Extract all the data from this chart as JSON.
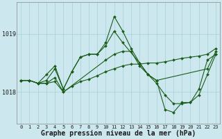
{
  "background_color": "#cce8ee",
  "grid_color": "#aad4da",
  "line_color": "#1a5c1a",
  "marker_color": "#1a5c1a",
  "xlabel": "Graphe pression niveau de la mer (hPa)",
  "xlabel_fontsize": 7,
  "ylabel_ticks": [
    1018,
    1019
  ],
  "xlim": [
    -0.5,
    23.5
  ],
  "ylim": [
    1017.45,
    1019.55
  ],
  "series": [
    {
      "x": [
        0,
        1,
        2,
        3,
        4,
        5,
        6,
        7,
        8,
        9,
        10,
        11,
        12,
        13,
        14,
        15,
        16,
        17,
        18,
        19,
        20,
        21,
        22,
        23
      ],
      "y": [
        1018.2,
        1018.2,
        1018.15,
        1018.3,
        1018.45,
        1018.05,
        1018.35,
        1018.6,
        1018.65,
        1018.65,
        1018.85,
        1019.3,
        1019.05,
        1018.75,
        1018.5,
        1018.3,
        1018.2,
        1017.7,
        1017.65,
        1017.82,
        1017.82,
        1018.05,
        1018.55,
        1018.65
      ]
    },
    {
      "x": [
        0,
        1,
        2,
        3,
        4,
        5,
        6,
        7,
        8,
        9,
        10,
        11,
        12,
        14,
        15,
        16,
        22,
        23
      ],
      "y": [
        1018.2,
        1018.2,
        1018.15,
        1018.2,
        1018.4,
        1018.05,
        1018.35,
        1018.6,
        1018.65,
        1018.65,
        1018.8,
        1019.05,
        1018.85,
        1018.5,
        1018.3,
        1018.2,
        1018.4,
        1018.7
      ]
    },
    {
      "x": [
        0,
        1,
        2,
        3,
        4,
        5,
        10,
        11,
        12,
        13,
        14,
        15,
        16,
        17,
        18,
        19,
        20,
        21,
        22,
        23
      ],
      "y": [
        1018.2,
        1018.2,
        1018.15,
        1018.15,
        1018.25,
        1018.0,
        1018.55,
        1018.65,
        1018.7,
        1018.7,
        1018.45,
        1018.3,
        1018.15,
        1017.95,
        1017.8,
        1017.8,
        1017.82,
        1017.95,
        1018.3,
        1018.65
      ]
    },
    {
      "x": [
        0,
        1,
        2,
        3,
        4,
        5,
        6,
        7,
        8,
        9,
        10,
        11,
        12,
        13,
        14,
        15,
        16,
        17,
        18,
        19,
        20,
        21,
        22,
        23
      ],
      "y": [
        1018.2,
        1018.2,
        1018.15,
        1018.15,
        1018.18,
        1018.0,
        1018.1,
        1018.18,
        1018.22,
        1018.28,
        1018.35,
        1018.4,
        1018.45,
        1018.48,
        1018.48,
        1018.5,
        1018.5,
        1018.52,
        1018.55,
        1018.58,
        1018.6,
        1018.62,
        1018.65,
        1018.75
      ]
    }
  ]
}
